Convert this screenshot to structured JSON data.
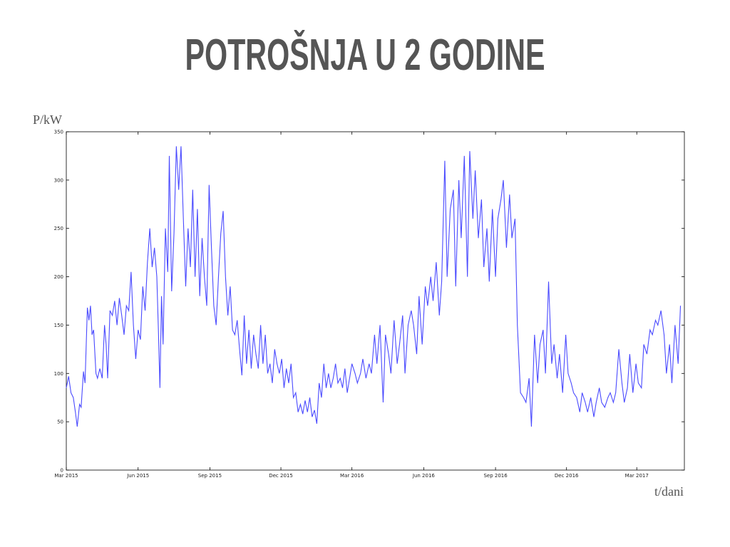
{
  "chart_data": {
    "type": "line",
    "title": "POTROŠNJA U 2 GODINE",
    "y_label": "P/kW",
    "x_label": "t/dani",
    "x": [
      0,
      3,
      6,
      9,
      12,
      14,
      17,
      19,
      22,
      24,
      27,
      29,
      31,
      33,
      35,
      38,
      40,
      43,
      46,
      49,
      51,
      53,
      56,
      59,
      62,
      65,
      68,
      71,
      74,
      77,
      80,
      83,
      86,
      89,
      92,
      95,
      98,
      101,
      104,
      107,
      110,
      113,
      116,
      118,
      120,
      122,
      124,
      127,
      130,
      132,
      135,
      138,
      141,
      144,
      147,
      150,
      153,
      156,
      159,
      162,
      165,
      168,
      171,
      174,
      177,
      180,
      183,
      186,
      189,
      192,
      195,
      198,
      201,
      204,
      207,
      210,
      213,
      216,
      219,
      222,
      225,
      228,
      231,
      234,
      237,
      240,
      243,
      246,
      249,
      252,
      255,
      258,
      261,
      264,
      267,
      270,
      273,
      276,
      279,
      282,
      285,
      288,
      291,
      294,
      297,
      300,
      303,
      306,
      309,
      312,
      315,
      318,
      321,
      324,
      327,
      330,
      333,
      336,
      339,
      342,
      345,
      348,
      351,
      354,
      357,
      360,
      363,
      366,
      370,
      373,
      377,
      380,
      384,
      388,
      391,
      395,
      398,
      402,
      406,
      409,
      413,
      416,
      420,
      424,
      427,
      431,
      434,
      438,
      442,
      445,
      449,
      452,
      456,
      460,
      463,
      467,
      470,
      474,
      478,
      481,
      485,
      488,
      492,
      496,
      499,
      503,
      506,
      510,
      514,
      517,
      521,
      524,
      528,
      532,
      535,
      539,
      542,
      546,
      550,
      553,
      557,
      560,
      564,
      568,
      571,
      575,
      578,
      582,
      586,
      589,
      593,
      596,
      600,
      604,
      607,
      611,
      614,
      618,
      622,
      625,
      629,
      632,
      636,
      640,
      643,
      647,
      650,
      654,
      658,
      661,
      665,
      668,
      672,
      676,
      679,
      683,
      686,
      690,
      694,
      697,
      701,
      704,
      708,
      712,
      715,
      719,
      722,
      726,
      730,
      733,
      737,
      740,
      744,
      748,
      751,
      755,
      758,
      762,
      766,
      769,
      773,
      776,
      780,
      784,
      787
    ],
    "values": [
      85,
      97,
      80,
      75,
      58,
      45,
      68,
      65,
      102,
      90,
      168,
      155,
      170,
      140,
      145,
      100,
      95,
      105,
      95,
      150,
      130,
      95,
      165,
      160,
      175,
      150,
      178,
      160,
      140,
      170,
      165,
      205,
      150,
      115,
      145,
      135,
      190,
      165,
      215,
      250,
      210,
      230,
      200,
      145,
      85,
      180,
      130,
      250,
      205,
      325,
      185,
      245,
      335,
      290,
      335,
      260,
      190,
      250,
      210,
      290,
      200,
      270,
      180,
      240,
      200,
      170,
      295,
      230,
      170,
      150,
      200,
      245,
      268,
      200,
      160,
      190,
      145,
      140,
      155,
      125,
      98,
      160,
      110,
      145,
      105,
      140,
      120,
      105,
      150,
      110,
      140,
      100,
      110,
      90,
      125,
      110,
      100,
      115,
      85,
      105,
      90,
      110,
      75,
      80,
      60,
      68,
      58,
      72,
      60,
      75,
      55,
      62,
      48,
      90,
      75,
      110,
      85,
      100,
      85,
      95,
      110,
      90,
      95,
      85,
      105,
      80,
      95,
      110,
      100,
      90,
      100,
      115,
      95,
      110,
      100,
      140,
      110,
      150,
      70,
      140,
      120,
      100,
      155,
      110,
      130,
      160,
      100,
      150,
      165,
      150,
      120,
      180,
      130,
      190,
      170,
      200,
      175,
      215,
      160,
      195,
      320,
      200,
      270,
      290,
      190,
      300,
      240,
      325,
      200,
      330,
      260,
      310,
      240,
      280,
      210,
      250,
      195,
      270,
      200,
      260,
      280,
      300,
      230,
      285,
      240,
      260,
      150,
      80,
      75,
      70,
      95,
      45,
      140,
      90,
      130,
      145,
      100,
      195,
      110,
      130,
      95,
      120,
      80,
      140,
      100,
      90,
      80,
      75,
      60,
      80,
      70,
      60,
      75,
      55,
      70,
      85,
      70,
      65,
      75,
      80,
      70,
      80,
      125,
      90,
      70,
      85,
      120,
      80,
      110,
      90,
      85,
      130,
      120,
      145,
      140,
      155,
      150,
      165,
      140,
      100,
      130,
      90,
      150,
      110,
      170
    ],
    "color": "#4a4aff",
    "xlim": [
      0,
      792
    ],
    "ylim": [
      0,
      350
    ],
    "yticks": [
      0,
      50,
      100,
      150,
      200,
      250,
      300,
      350
    ],
    "xticks": [
      {
        "value": 0,
        "label": "Mar 2015"
      },
      {
        "value": 92,
        "label": "Jun 2015"
      },
      {
        "value": 184,
        "label": "Sep 2015"
      },
      {
        "value": 275,
        "label": "Dec 2015"
      },
      {
        "value": 366,
        "label": "Mar 2016"
      },
      {
        "value": 458,
        "label": "Jun 2016"
      },
      {
        "value": 550,
        "label": "Sep 2016"
      },
      {
        "value": 641,
        "label": "Dec 2016"
      },
      {
        "value": 731,
        "label": "Mar 2017"
      }
    ],
    "grid": false
  }
}
